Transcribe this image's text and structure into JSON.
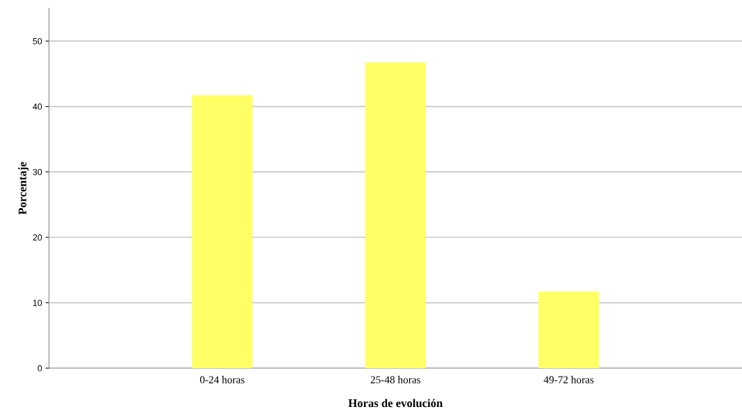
{
  "chart_data": {
    "type": "bar",
    "xlabel": "Horas de evolución",
    "ylabel": "Porcentaje",
    "categories": [
      "0-24 horas",
      "25-48 horas",
      "49-72 horas"
    ],
    "values": [
      41.7,
      46.7,
      11.7
    ],
    "color": "#ffff66",
    "ylim": [
      0,
      55
    ],
    "yticks": [
      0,
      10,
      20,
      30,
      40,
      50
    ],
    "grid": "y"
  }
}
